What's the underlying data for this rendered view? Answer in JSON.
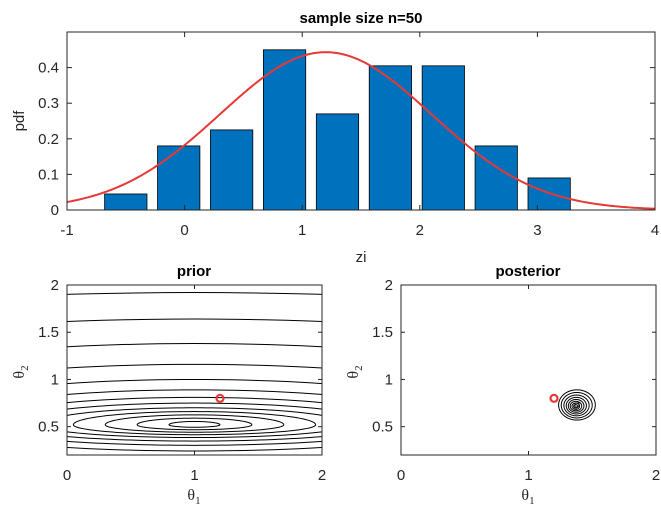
{
  "chart_data": [
    {
      "type": "bar",
      "title": "sample size n=50",
      "xlabel": "zi",
      "ylabel": "pdf",
      "xlim": [
        -1,
        4
      ],
      "ylim": [
        0,
        0.5
      ],
      "xticks": [
        "-1",
        "0",
        "1",
        "2",
        "3",
        "4"
      ],
      "yticks": [
        "0",
        "0.1",
        "0.2",
        "0.3",
        "0.4"
      ],
      "bar_width": 0.36,
      "bar_color": "#0072BD",
      "bars": [
        {
          "x": -0.5,
          "value": 0.045
        },
        {
          "x": -0.05,
          "value": 0.18
        },
        {
          "x": 0.4,
          "value": 0.225
        },
        {
          "x": 0.85,
          "value": 0.45
        },
        {
          "x": 1.3,
          "value": 0.27
        },
        {
          "x": 1.75,
          "value": 0.405
        },
        {
          "x": 2.2,
          "value": 0.405
        },
        {
          "x": 2.65,
          "value": 0.18
        },
        {
          "x": 3.1,
          "value": 0.09
        }
      ],
      "curve": {
        "type": "normal pdf",
        "mean": 1.2,
        "sd": 0.9,
        "color": "#E53935"
      }
    },
    {
      "type": "contour",
      "title": "prior",
      "xlabel": "θ",
      "xlabel_sub": "1",
      "ylabel": "θ",
      "ylabel_sub": "2",
      "xlim": [
        0,
        2
      ],
      "ylim": [
        0.2,
        2
      ],
      "xticks": [
        "0",
        "1",
        "2"
      ],
      "yticks": [
        "0.5",
        "1",
        "1.5",
        "2"
      ],
      "marker": {
        "x": 1.2,
        "y": 0.8,
        "color": "#E53935"
      }
    },
    {
      "type": "contour",
      "title": "posterior",
      "xlabel": "θ",
      "xlabel_sub": "1",
      "ylabel": "θ",
      "ylabel_sub": "2",
      "xlim": [
        0,
        2
      ],
      "ylim": [
        0.2,
        2
      ],
      "xticks": [
        "0",
        "1",
        "2"
      ],
      "yticks": [
        "0.5",
        "1",
        "1.5",
        "2"
      ],
      "center": {
        "x": 1.38,
        "y": 0.73
      },
      "marker": {
        "x": 1.2,
        "y": 0.8,
        "color": "#E53935"
      }
    }
  ]
}
